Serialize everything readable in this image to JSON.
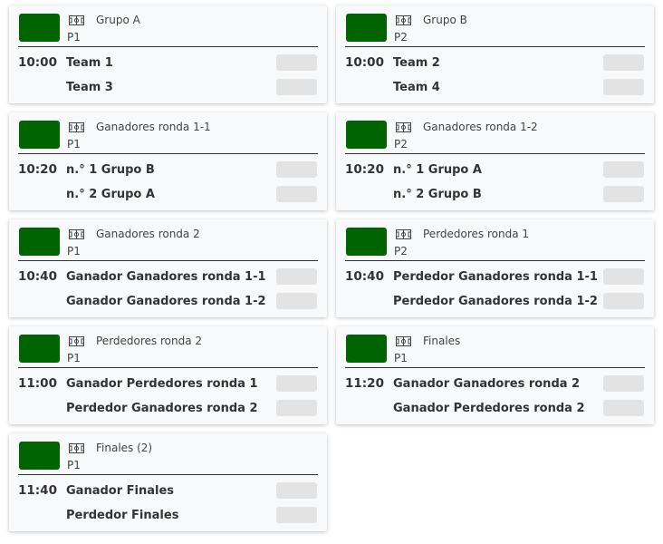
{
  "colors": {
    "accent": "#006400",
    "card_bg": "#f8f9fa",
    "score_bg": "#e3e3e3"
  },
  "icon": "soccer-field-icon",
  "matches": [
    {
      "title": "Grupo A",
      "pitch": "P1",
      "time": "10:00",
      "home": "Team 1",
      "away": "Team 3"
    },
    {
      "title": "Grupo B",
      "pitch": "P2",
      "time": "10:00",
      "home": "Team 2",
      "away": "Team 4"
    },
    {
      "title": "Ganadores ronda 1-1",
      "pitch": "P1",
      "time": "10:20",
      "home": "n.° 1 Grupo B",
      "away": "n.° 2 Grupo A"
    },
    {
      "title": "Ganadores ronda 1-2",
      "pitch": "P2",
      "time": "10:20",
      "home": "n.° 1 Grupo A",
      "away": "n.° 2 Grupo B"
    },
    {
      "title": "Ganadores ronda 2",
      "pitch": "P1",
      "time": "10:40",
      "home": "Ganador Ganadores ronda 1-1",
      "away": "Ganador Ganadores ronda 1-2"
    },
    {
      "title": "Perdedores ronda 1",
      "pitch": "P2",
      "time": "10:40",
      "home": "Perdedor Ganadores ronda 1-1",
      "away": "Perdedor Ganadores ronda 1-2"
    },
    {
      "title": "Perdedores ronda 2",
      "pitch": "P1",
      "time": "11:00",
      "home": "Ganador Perdedores ronda 1",
      "away": "Perdedor Ganadores ronda 2"
    },
    {
      "title": "Finales",
      "pitch": "P1",
      "time": "11:20",
      "home": "Ganador Ganadores ronda 2",
      "away": "Ganador Perdedores ronda 2"
    },
    {
      "title": "Finales (2)",
      "pitch": "P1",
      "time": "11:40",
      "home": "Ganador Finales",
      "away": "Perdedor Finales"
    }
  ]
}
